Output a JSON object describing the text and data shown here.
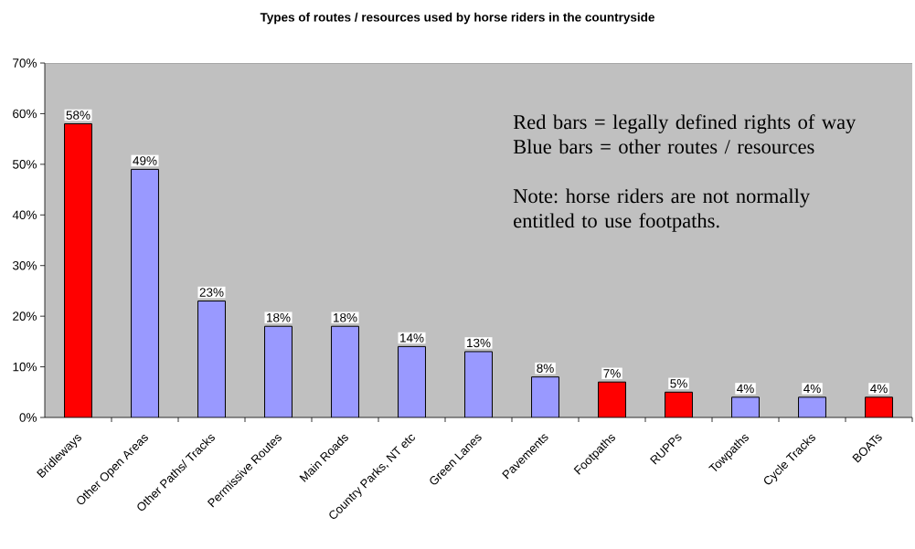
{
  "chart_data": {
    "type": "bar",
    "title": "Types of routes / resources used by horse riders in the countryside",
    "categories": [
      "Bridleways",
      "Other Open Areas",
      "Other Paths/ Tracks",
      "Permissive Routes",
      "Main Roads",
      "Country Parks, NT etc",
      "Green Lanes",
      "Pavements",
      "Footpaths",
      "RUPPs",
      "Towpaths",
      "Cycle Tracks",
      "BOATs"
    ],
    "values": [
      58,
      49,
      23,
      18,
      18,
      14,
      13,
      8,
      7,
      5,
      4,
      4,
      4
    ],
    "colors": [
      "#ff0000",
      "#9999ff",
      "#9999ff",
      "#9999ff",
      "#9999ff",
      "#9999ff",
      "#9999ff",
      "#9999ff",
      "#ff0000",
      "#ff0000",
      "#9999ff",
      "#9999ff",
      "#ff0000"
    ],
    "value_labels": [
      "58%",
      "49%",
      "23%",
      "18%",
      "18%",
      "14%",
      "13%",
      "8%",
      "7%",
      "5%",
      "4%",
      "4%",
      "4%"
    ],
    "ylim": [
      0,
      70
    ],
    "yticks": [
      {
        "value": 0,
        "label": "0%"
      },
      {
        "value": 10,
        "label": "10%"
      },
      {
        "value": 20,
        "label": "20%"
      },
      {
        "value": 30,
        "label": "30%"
      },
      {
        "value": 40,
        "label": "40%"
      },
      {
        "value": 50,
        "label": "50%"
      },
      {
        "value": 60,
        "label": "60%"
      },
      {
        "value": 70,
        "label": "70%"
      }
    ],
    "annotations": [
      "Red bars = legally defined rights of way",
      "Blue bars = other routes / resources",
      "Note: horse riders are not normally entitled to use footpaths."
    ]
  }
}
